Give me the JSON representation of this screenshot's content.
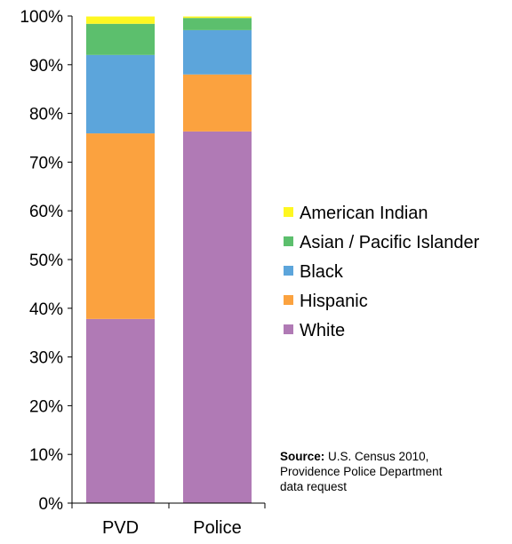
{
  "chart_data": {
    "type": "bar",
    "stacked": "percent",
    "categories": [
      "PVD",
      "Police"
    ],
    "series": [
      {
        "name": "White",
        "color": "#b07ab5",
        "values": [
          37.8,
          76.3
        ]
      },
      {
        "name": "Hispanic",
        "color": "#fba23f",
        "values": [
          38.1,
          11.7
        ]
      },
      {
        "name": "Black",
        "color": "#5ca5db",
        "values": [
          16.1,
          9.1
        ]
      },
      {
        "name": "Asian / Pacific Islander",
        "color": "#5cbf6d",
        "values": [
          6.4,
          2.5
        ]
      },
      {
        "name": "American Indian",
        "color": "#fef721",
        "values": [
          1.5,
          0.3
        ]
      }
    ],
    "ylim": [
      0,
      100
    ],
    "yticks": [
      "0%",
      "10%",
      "20%",
      "30%",
      "40%",
      "50%",
      "60%",
      "70%",
      "80%",
      "90%",
      "100%"
    ],
    "legend": {
      "placement": "right",
      "order": [
        "American Indian",
        "Asian / Pacific Islander",
        "Black",
        "Hispanic",
        "White"
      ]
    },
    "grid": false
  },
  "source": {
    "label": "Source:",
    "line1": "U.S. Census 2010,",
    "line2": "Providence Police Department",
    "line3": "data request"
  }
}
